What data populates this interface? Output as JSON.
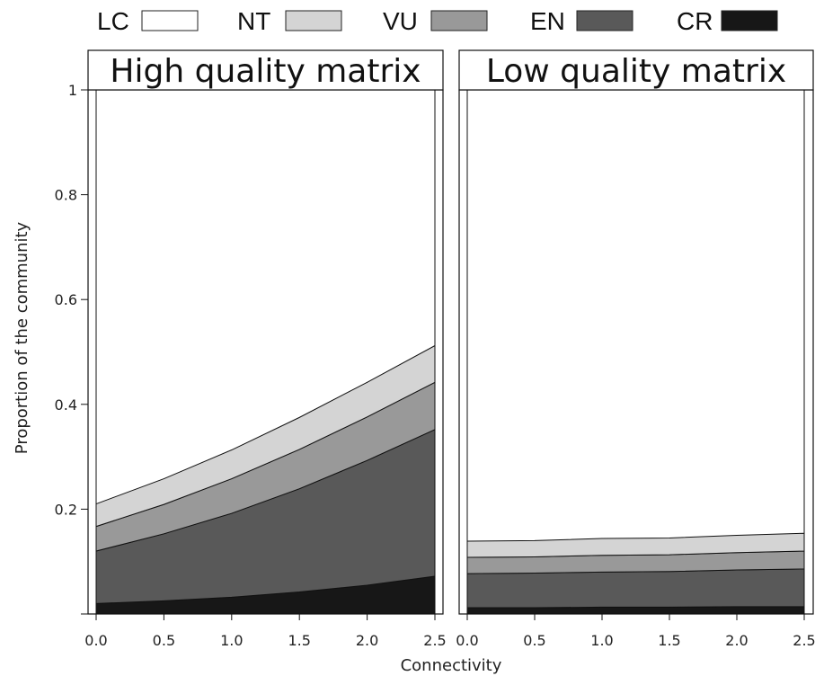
{
  "chart_data": {
    "type": "area",
    "stacked": true,
    "xlabel": "Connectivity",
    "ylabel": "Proportion of the community",
    "xlim": [
      0,
      2.5
    ],
    "ylim": [
      0,
      1
    ],
    "x_ticks": [
      "0.0",
      "0.5",
      "1.0",
      "1.5",
      "2.0",
      "2.5"
    ],
    "y_ticks": [
      "0.2",
      "0.4",
      "0.6",
      "0.8",
      "1"
    ],
    "legend": {
      "position": "top",
      "entries": [
        {
          "label": "LC",
          "color": "#ffffff"
        },
        {
          "label": "NT",
          "color": "#d4d4d4"
        },
        {
          "label": "VU",
          "color": "#999999"
        },
        {
          "label": "EN",
          "color": "#595959"
        },
        {
          "label": "CR",
          "color": "#171717"
        }
      ]
    },
    "panels": [
      {
        "title": "High quality matrix",
        "x": [
          0,
          0.5,
          1.0,
          1.5,
          2.0,
          2.5
        ],
        "series": [
          {
            "name": "CR",
            "values": [
              0.02,
              0.025,
              0.032,
              0.042,
              0.055,
              0.072
            ]
          },
          {
            "name": "EN",
            "values": [
              0.1,
              0.128,
              0.16,
              0.197,
              0.238,
              0.28
            ]
          },
          {
            "name": "VU",
            "values": [
              0.047,
              0.056,
              0.066,
              0.075,
              0.083,
              0.09
            ]
          },
          {
            "name": "NT",
            "values": [
              0.043,
              0.049,
              0.055,
              0.061,
              0.066,
              0.07
            ]
          }
        ]
      },
      {
        "title": "Low quality matrix",
        "x": [
          0,
          0.5,
          1.0,
          1.5,
          2.0,
          2.5
        ],
        "series": [
          {
            "name": "CR",
            "values": [
              0.012,
              0.012,
              0.013,
              0.013,
              0.014,
              0.014
            ]
          },
          {
            "name": "EN",
            "values": [
              0.065,
              0.066,
              0.067,
              0.068,
              0.07,
              0.072
            ]
          },
          {
            "name": "VU",
            "values": [
              0.031,
              0.031,
              0.032,
              0.032,
              0.033,
              0.034
            ]
          },
          {
            "name": "NT",
            "values": [
              0.031,
              0.031,
              0.032,
              0.032,
              0.033,
              0.034
            ]
          }
        ]
      }
    ]
  }
}
